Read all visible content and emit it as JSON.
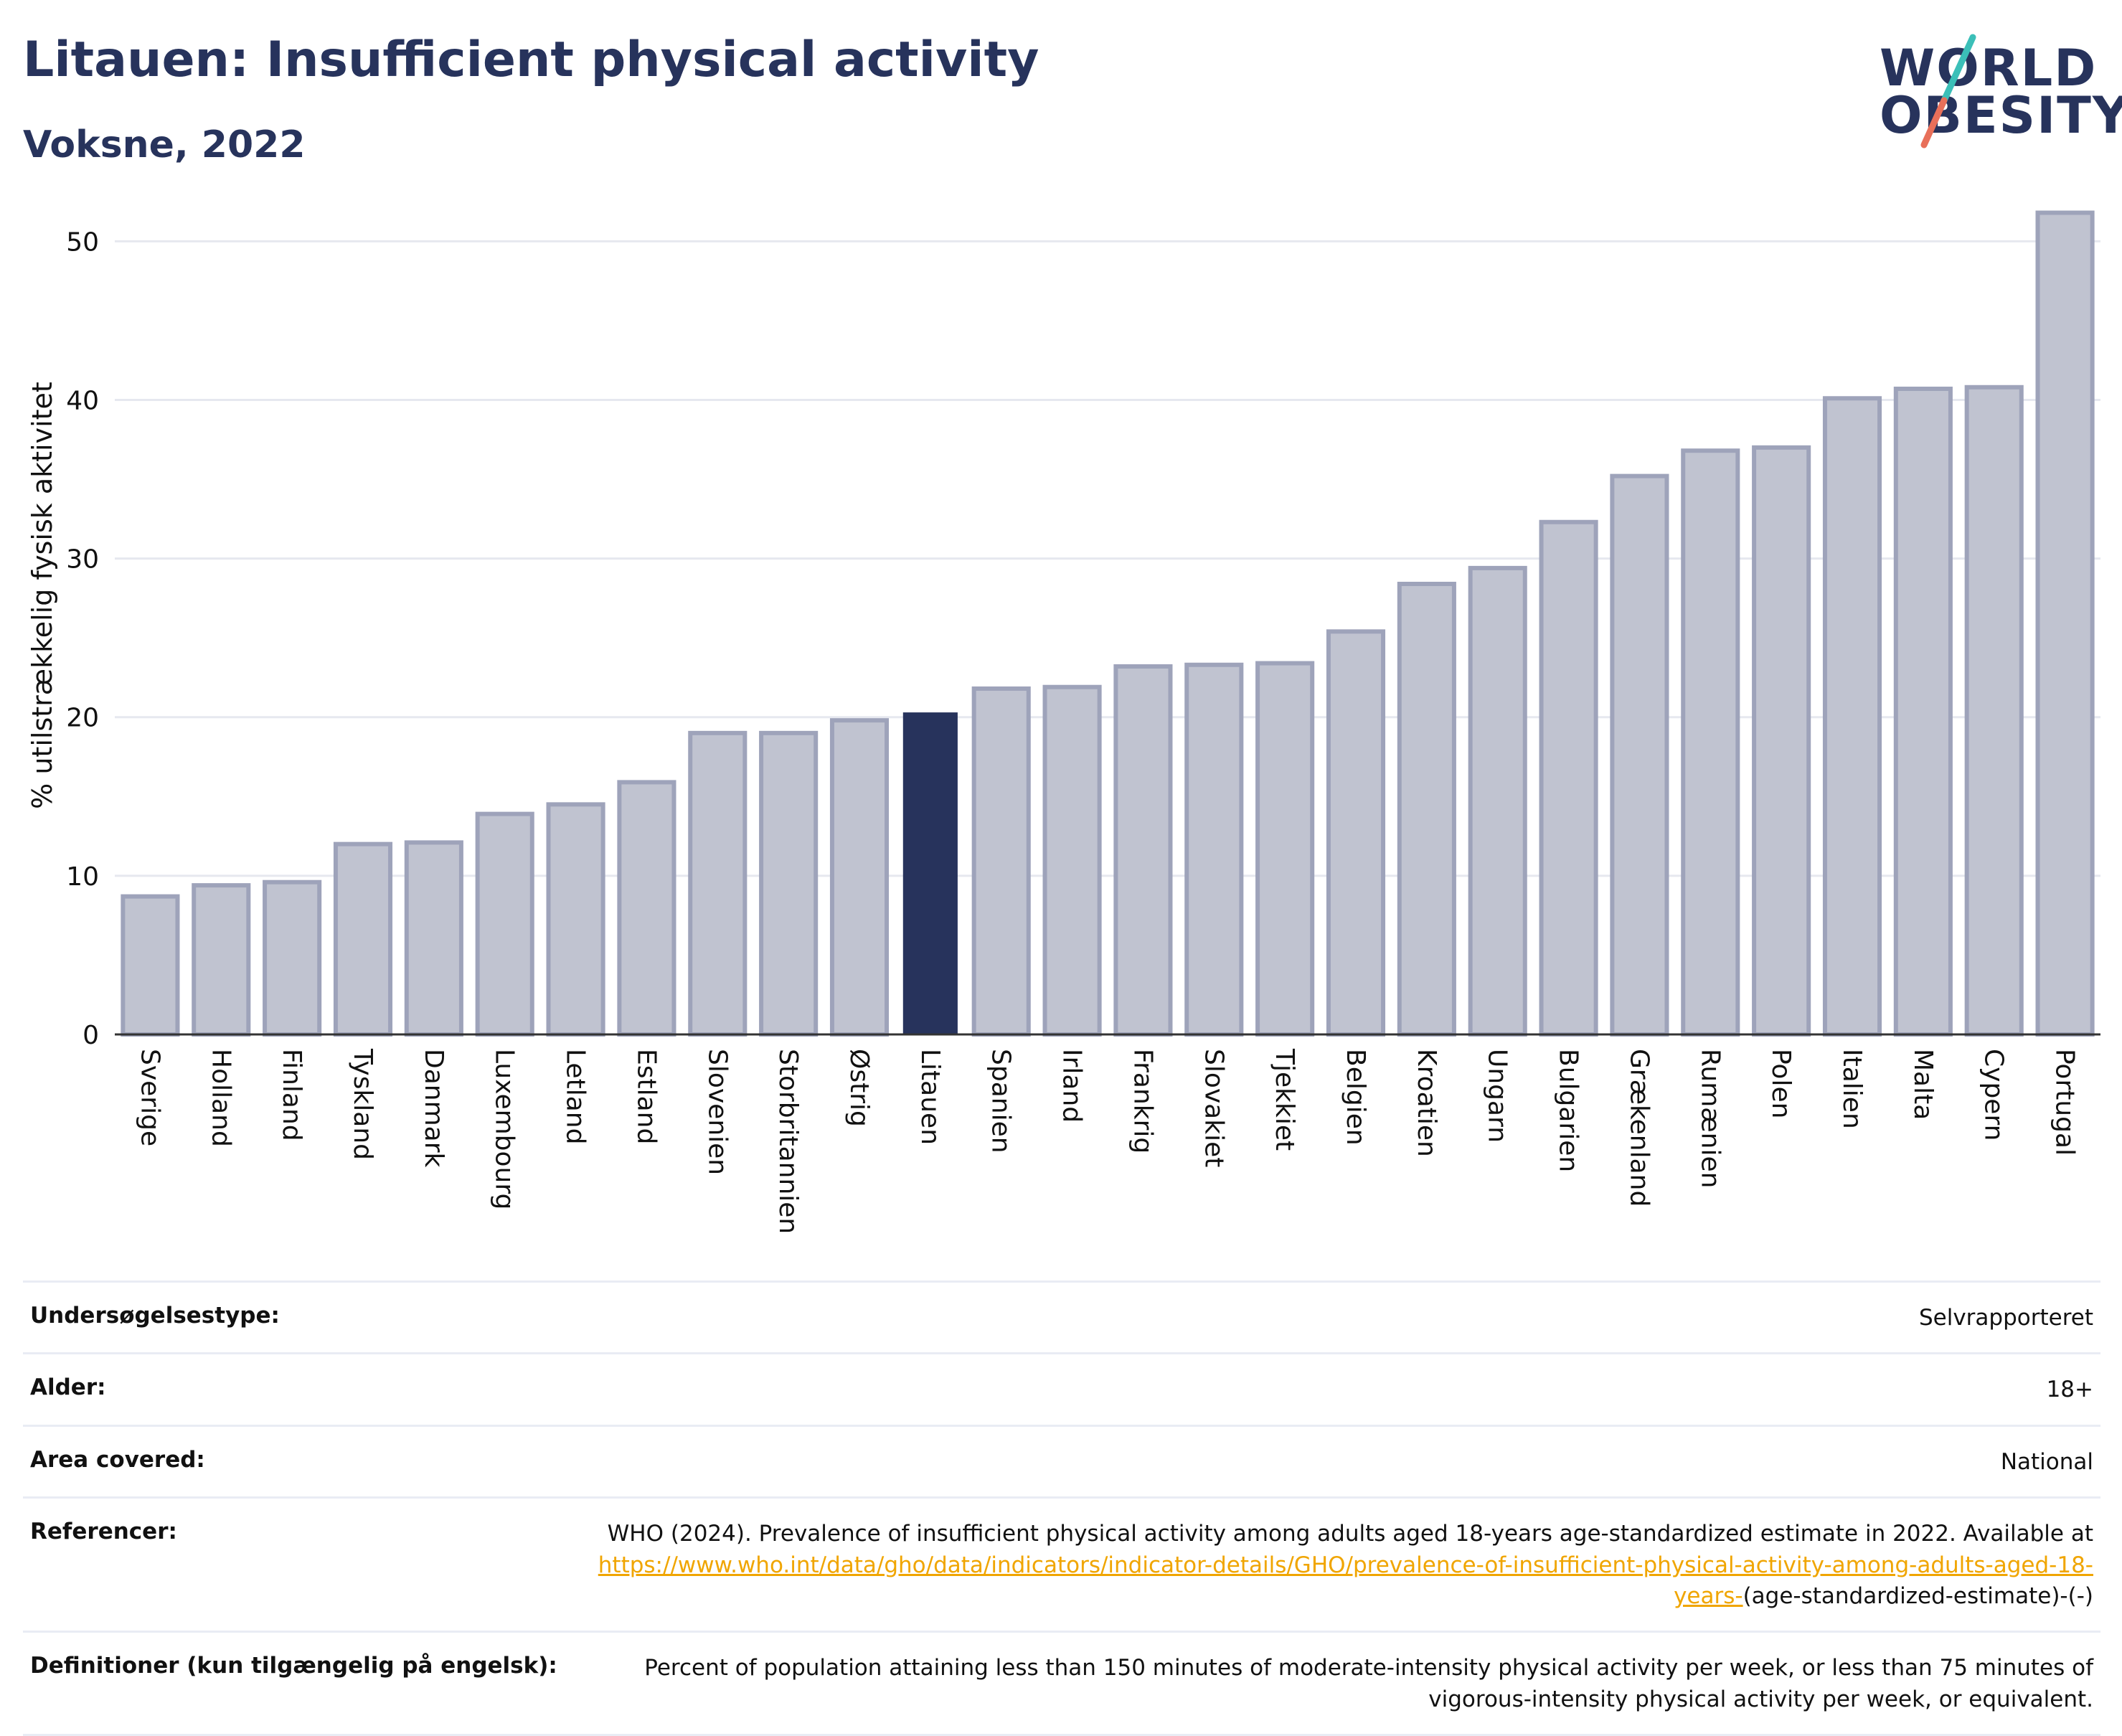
{
  "header": {
    "title": "Litauen: Insufficient physical activity",
    "subtitle": "Voksne, 2022"
  },
  "logo": {
    "line1": "WORLD",
    "line2": "OBESITY",
    "colors": [
      "#27335c",
      "#e8705a",
      "#3bbfb8"
    ]
  },
  "chart_data": {
    "type": "bar",
    "ylabel": "% utilstrækkelig fysisk aktivitet",
    "ylim": [
      0,
      53
    ],
    "yticks": [
      0,
      10,
      20,
      30,
      40,
      50
    ],
    "grid": true,
    "categories": [
      "Sverige",
      "Holland",
      "Finland",
      "Tyskland",
      "Danmark",
      "Luxembourg",
      "Letland",
      "Estland",
      "Slovenien",
      "Storbritannien",
      "Østrig",
      "Litauen",
      "Spanien",
      "Irland",
      "Frankrig",
      "Slovakiet",
      "Tjekkiet",
      "Belgien",
      "Kroatien",
      "Ungarn",
      "Bulgarien",
      "Grækenland",
      "Rumænien",
      "Polen",
      "Italien",
      "Malta",
      "Cypern",
      "Portugal"
    ],
    "values": [
      8.7,
      9.4,
      9.6,
      12.0,
      12.1,
      13.9,
      14.5,
      15.9,
      19.0,
      19.0,
      19.8,
      20.3,
      21.8,
      21.9,
      23.2,
      23.3,
      23.4,
      25.4,
      28.4,
      29.4,
      32.3,
      35.2,
      36.8,
      37.0,
      40.1,
      40.7,
      40.8,
      51.8
    ],
    "highlight": "Litauen",
    "colors": {
      "default": "#c0c3d0",
      "border": "#9ea3ba",
      "highlight": "#27335c"
    }
  },
  "meta": {
    "rows": [
      {
        "label": "Undersøgelsestype:",
        "value": "Selvrapporteret"
      },
      {
        "label": "Alder:",
        "value": "18+"
      },
      {
        "label": "Area covered:",
        "value": "National"
      }
    ],
    "references": {
      "label": "Referencer:",
      "text": "WHO (2024). Prevalence of insufficient physical activity among adults aged 18-years age-standardized estimate in 2022. Available at",
      "link": "https://www.who.int/data/gho/data/indicators/indicator-details/GHO/prevalence-of-insufficient-physical-activity-among-adults-aged-18-years-",
      "suffix": "(age-standardized-estimate)-(-)"
    },
    "definitions": {
      "label": "Definitioner (kun tilgængelig på engelsk):",
      "value": "Percent of population attaining less than 150 minutes of moderate-intensity physical activity per week, or less than 75 minutes of vigorous-intensity physical activity per week, or equivalent."
    }
  }
}
